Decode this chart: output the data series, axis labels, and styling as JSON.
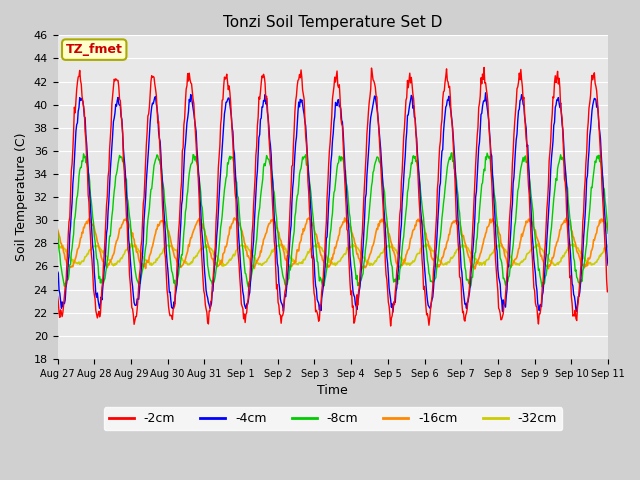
{
  "title": "Tonzi Soil Temperature Set D",
  "xlabel": "Time",
  "ylabel": "Soil Temperature (C)",
  "ylim": [
    18,
    46
  ],
  "x_labels": [
    "Aug 27",
    "Aug 28",
    "Aug 29",
    "Aug 30",
    "Aug 31",
    "Sep 1",
    "Sep 2",
    "Sep 3",
    "Sep 4",
    "Sep 5",
    "Sep 6",
    "Sep 7",
    "Sep 8",
    "Sep 9",
    "Sep 10",
    "Sep 11"
  ],
  "legend_labels": [
    "-2cm",
    "-4cm",
    "-8cm",
    "-16cm",
    "-32cm"
  ],
  "legend_colors": [
    "#ff0000",
    "#0000ff",
    "#00cc00",
    "#ff8800",
    "#cccc00"
  ],
  "annotation_text": "TZ_fmet",
  "annotation_color": "#cc0000",
  "annotation_bg": "#ffffcc",
  "annotation_border": "#aaaa00",
  "n_days": 15,
  "points_per_day": 48
}
